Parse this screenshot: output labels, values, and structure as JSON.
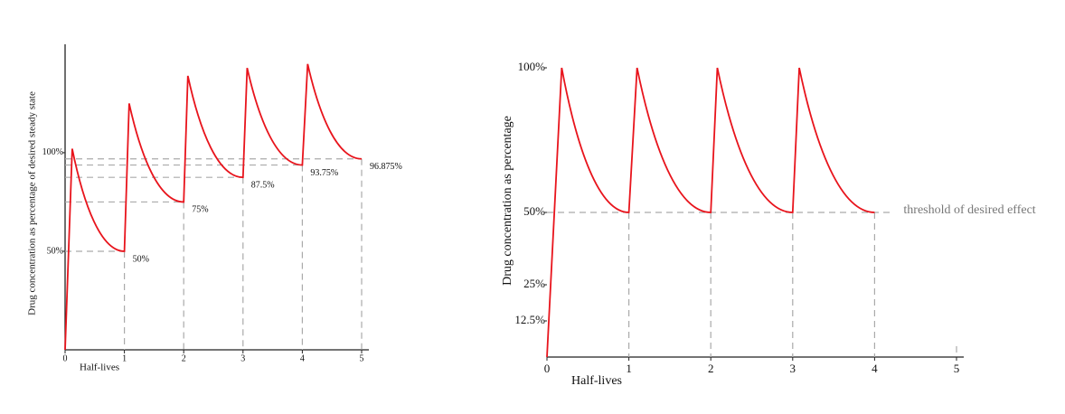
{
  "chart_data": [
    {
      "type": "line",
      "y_label": "Drug concentration as percentage of desired steady state",
      "x_label": "Half-lives",
      "x": [
        0,
        0.12,
        1,
        1.08,
        2,
        2.07,
        3,
        3.07,
        4,
        4.09,
        5
      ],
      "values": [
        0,
        102,
        50,
        125,
        75,
        139,
        87.5,
        143,
        93.75,
        145,
        96.875
      ],
      "value_labels": [
        null,
        null,
        "50%",
        null,
        "75%",
        null,
        "87.5%",
        null,
        "93.75%",
        null,
        "96.875%"
      ],
      "color": "#e8141c",
      "xlim": [
        0,
        5
      ],
      "ylim": [
        0,
        155
      ],
      "xticks": [
        0,
        1,
        2,
        3,
        4,
        5
      ],
      "yticks": [
        {
          "value": 50,
          "label": "50%"
        },
        {
          "value": 100,
          "label": "100%"
        }
      ]
    },
    {
      "type": "line",
      "y_label": "Drug concentration as percentage",
      "x_label": "Half-lives",
      "x": [
        0,
        0.18,
        1,
        1.1,
        2,
        2.08,
        3,
        3.08,
        4
      ],
      "values": [
        0,
        100,
        50,
        100,
        50,
        100,
        50,
        100,
        50
      ],
      "color": "#e8141c",
      "threshold": 50,
      "threshold_label": "threshold of desired effect",
      "xlim": [
        0,
        5
      ],
      "ylim": [
        0,
        100
      ],
      "xticks": [
        0,
        1,
        2,
        3,
        4,
        5
      ],
      "yticks": [
        {
          "value": 12.5,
          "label": "12.5%"
        },
        {
          "value": 25,
          "label": "25%"
        },
        {
          "value": 50,
          "label": "50%"
        },
        {
          "value": 100,
          "label": "100%"
        }
      ]
    }
  ]
}
